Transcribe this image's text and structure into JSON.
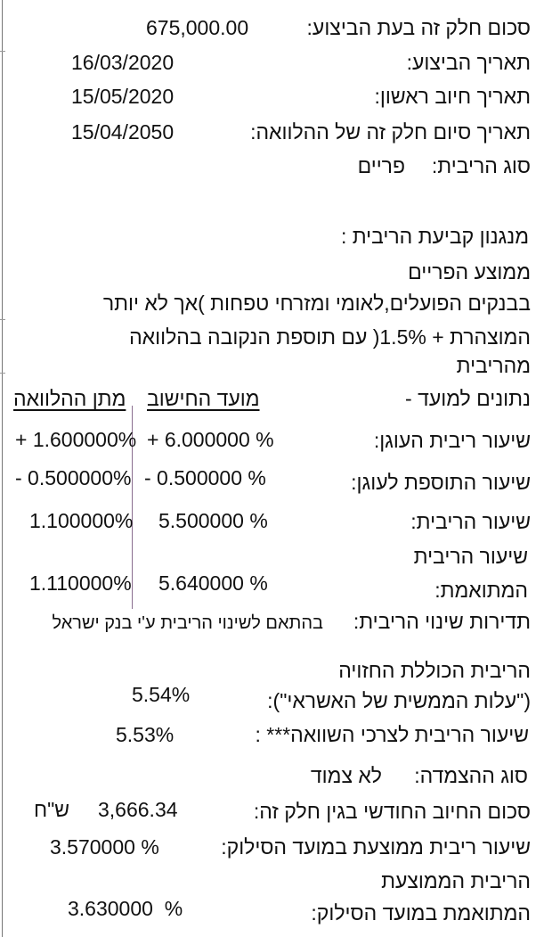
{
  "loan": {
    "amount_label": "סכום חלק זה בעת הביצוע:",
    "amount_value": "675,000.00",
    "exec_date_label": "תאריך הביצוע:",
    "exec_date_value": "16/03/2020",
    "first_charge_label": "תאריך חיוב ראשון:",
    "first_charge_value": "15/05/2020",
    "end_date_label": "תאריך סיום חלק זה של ההלוואה:",
    "end_date_value": "15/04/2050",
    "rate_type_label": "סוג הריבית:",
    "rate_type_value": "פריים"
  },
  "mechanism": {
    "title": "מנגנון קביעת הריבית :",
    "lines": [
      "ממוצע הפריים",
      "בבנקים הפועלים,לאומי ומזרחי טפחות )אך לא יותר",
      "המוצהרת + 1.5%( עם תוספת הנקובה בהלוואה",
      "מהריבית"
    ]
  },
  "rates_table": {
    "row_header": "נתונים למועד -",
    "col_calc": "מועד החישוב",
    "col_grant": "מתן ההלוואה",
    "rows": [
      {
        "label": "שיעור ריבית העוגן:",
        "calc": "+ 6.000000 %",
        "grant": "+ 1.600000%"
      },
      {
        "label": "שיעור התוספת לעוגן:",
        "calc": "- 0.500000 %",
        "grant": "- 0.500000%"
      },
      {
        "label": "שיעור הריבית:",
        "calc": "5.500000 %",
        "grant": "1.100000%"
      },
      {
        "label_line1": "שיעור הריבית",
        "label_line2": "המתואמת:",
        "calc": "5.640000 %",
        "grant": "1.110000%"
      }
    ]
  },
  "frequency": {
    "label": "תדירות שינוי הריבית:",
    "value": "בהתאם לשינוי הריבית ע'י בנק ישראל"
  },
  "summary": {
    "total_line1": "הריבית הכוללת החזויה",
    "total_line2": "(\"עלות הממשית של האשראי\"):",
    "total_value": "5.54%",
    "compare_label": "שיעור הריבית לצרכי השוואה*** :",
    "compare_value": "5.53%",
    "linkage_label": "סוג ההצמדה:",
    "linkage_value": "לא צמוד",
    "monthly_label": "סכום החיוב החודשי בגין חלק זה:",
    "monthly_value": "3,666.34",
    "monthly_currency": "ש\"ח",
    "avg_label": "שיעור ריבית ממוצעת במועד הסילוק:",
    "avg_value": "3.570000 %",
    "adj_line1": "הריבית הממוצעת",
    "adj_line2": "המתואמת במועד הסילוק:",
    "adj_value": "3.630000  %"
  }
}
